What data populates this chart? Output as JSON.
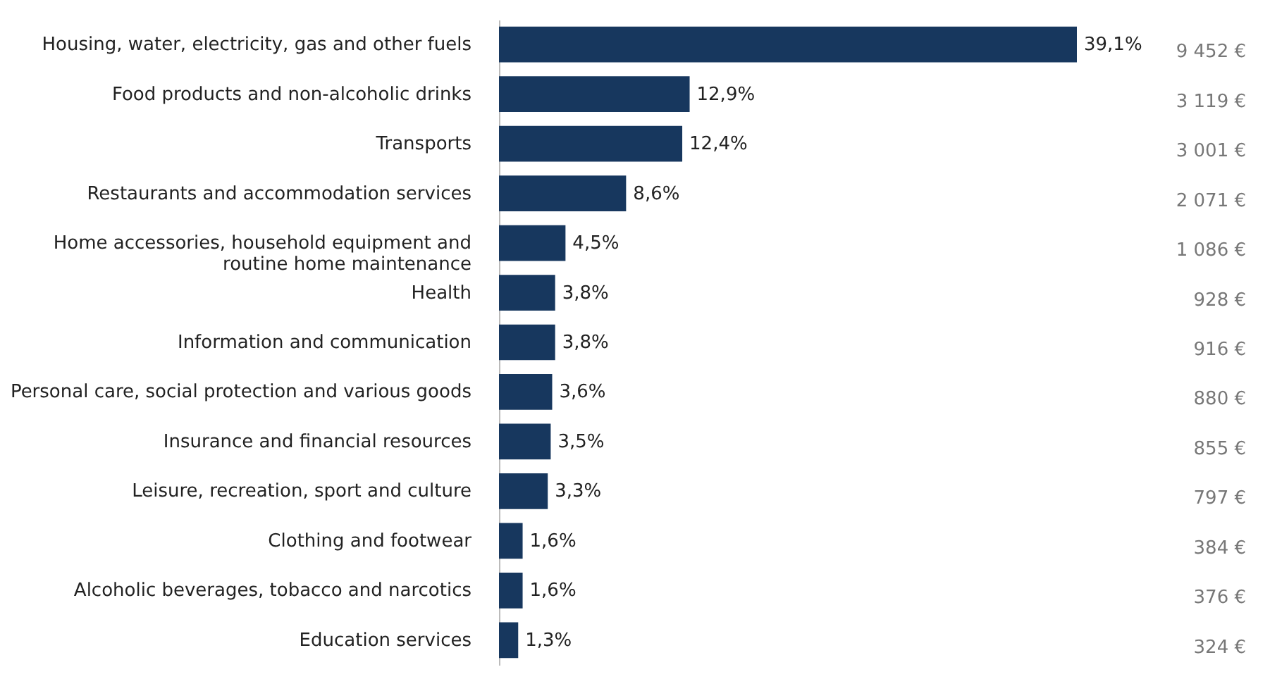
{
  "chart_data": {
    "type": "bar",
    "orientation": "horizontal",
    "tick_labels": "y",
    "color": "#17375e",
    "categories": [
      "Housing, water, electricity, gas and other fuels",
      "Food products and non-alcoholic drinks",
      "Transports",
      "Restaurants and accommodation services",
      "Home accessories, household equipment and\nroutine home maintenance",
      "Health",
      "Information and communication",
      "Personal care, social protection and various goods",
      "Insurance and financial resources",
      "Leisure, recreation, sport and culture",
      "Clothing and footwear",
      "Alcoholic beverages, tobacco and narcotics",
      "Education services"
    ],
    "values": [
      39.1,
      12.9,
      12.4,
      8.6,
      4.5,
      3.8,
      3.8,
      3.6,
      3.5,
      3.3,
      1.6,
      1.6,
      1.3
    ],
    "value_labels": [
      "39,1%",
      "12,9%",
      "12,4%",
      "8,6%",
      "4,5%",
      "3,8%",
      "3,8%",
      "3,6%",
      "3,5%",
      "3,3%",
      "1,6%",
      "1,6%",
      "1,3%"
    ],
    "annotations": [
      "9 452 €",
      "3 119 €",
      "3 001 €",
      "2 071 €",
      "1 086 €",
      "928 €",
      "916 €",
      "880 €",
      "855 €",
      "797 €",
      "384 €",
      "376 €",
      "324 €"
    ]
  }
}
